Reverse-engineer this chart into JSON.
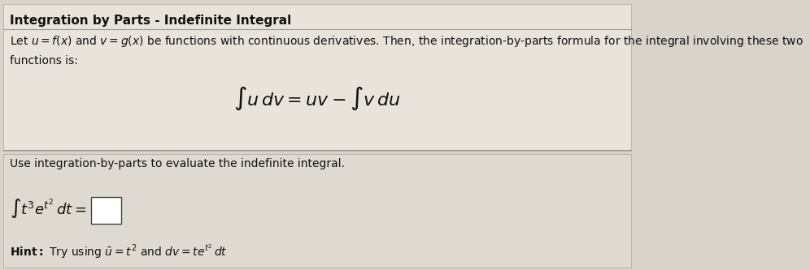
{
  "title": "Integration by Parts - Indefinite Integral",
  "background_color": "#d8d4cc",
  "top_panel_bg": "#e8e4dc",
  "bottom_panel_bg": "#dedad2",
  "title_fontsize": 11,
  "body_fontsize": 10,
  "math_fontsize": 16,
  "small_math_fontsize": 13,
  "hint_fontsize": 10,
  "line1": "Let $u = f(x)$ and $v = g(x)$ be functions with continuous derivatives. Then, the integration-by-parts formula for the integral involving these two",
  "line2": "functions is:",
  "formula": "$\\int u\\,dv = uv - \\int v\\,du$",
  "instruction": "Use integration-by-parts to evaluate the indefinite integral.",
  "integral_expr": "$\\int t^3 e^{t^2}\\, dt =$",
  "hint_text": " Try using $\\bar{u} = t^2$ and $dv = te^{t^2}\\, dt$"
}
